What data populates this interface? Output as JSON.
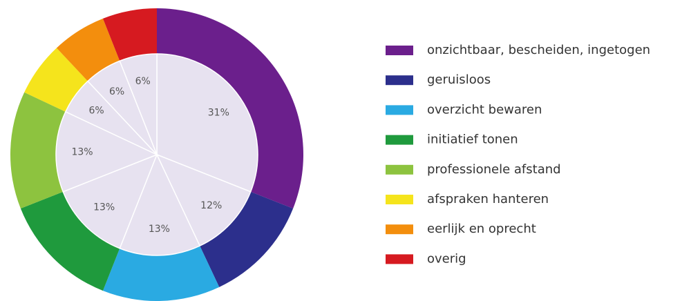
{
  "chart_data": {
    "type": "donut",
    "categories": [
      "onzichtbaar, bescheiden, ingetogen",
      "geruisloos",
      "overzicht bewaren",
      "initiatief tonen",
      "professionele afstand",
      "afspraken hanteren",
      "eerlijk en oprecht",
      "overig"
    ],
    "values": [
      31,
      12,
      13,
      13,
      13,
      6,
      6,
      6
    ],
    "value_labels": [
      "31%",
      "12%",
      "13%",
      "13%",
      "13%",
      "6%",
      "6%",
      "6%"
    ],
    "colors": [
      "#6b1f8c",
      "#2c2f8c",
      "#2aaae2",
      "#1f9a3d",
      "#8dc33f",
      "#f5e41c",
      "#f38e0d",
      "#d61a20"
    ]
  }
}
